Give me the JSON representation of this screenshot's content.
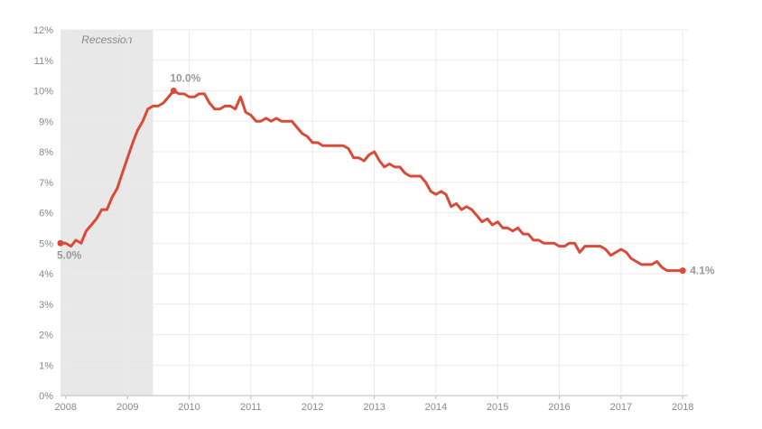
{
  "chart_data": {
    "type": "line",
    "xlim": [
      "2007-12-01",
      "2018-02-01"
    ],
    "ylim": [
      0,
      12
    ],
    "yticks": [
      {
        "value": 0,
        "label": "0%"
      },
      {
        "value": 1,
        "label": "1%"
      },
      {
        "value": 2,
        "label": "2%"
      },
      {
        "value": 3,
        "label": "3%"
      },
      {
        "value": 4,
        "label": "4%"
      },
      {
        "value": 5,
        "label": "5%"
      },
      {
        "value": 6,
        "label": "6%"
      },
      {
        "value": 7,
        "label": "7%"
      },
      {
        "value": 8,
        "label": "8%"
      },
      {
        "value": 9,
        "label": "9%"
      },
      {
        "value": 10,
        "label": "10%"
      },
      {
        "value": 11,
        "label": "11%"
      },
      {
        "value": 12,
        "label": "12%"
      }
    ],
    "xticks": [
      {
        "value": "2008-01-01",
        "label": "2008"
      },
      {
        "value": "2009-01-01",
        "label": "2009"
      },
      {
        "value": "2010-01-01",
        "label": "2010"
      },
      {
        "value": "2011-01-01",
        "label": "2011"
      },
      {
        "value": "2012-01-01",
        "label": "2012"
      },
      {
        "value": "2013-01-01",
        "label": "2013"
      },
      {
        "value": "2014-01-01",
        "label": "2014"
      },
      {
        "value": "2015-01-01",
        "label": "2015"
      },
      {
        "value": "2016-01-01",
        "label": "2016"
      },
      {
        "value": "2017-01-01",
        "label": "2017"
      },
      {
        "value": "2018-01-01",
        "label": "2018"
      }
    ],
    "grid": true,
    "line_color": "#d94a38",
    "recession": {
      "label": "Recession",
      "start": "2007-12-01",
      "end": "2009-06-01",
      "color": "#e8e8e8"
    },
    "annotations": [
      {
        "x": "2007-12-01",
        "y": 5.0,
        "label": "5.0%",
        "position": "below"
      },
      {
        "x": "2009-10-01",
        "y": 10.0,
        "label": "10.0%",
        "position": "above"
      },
      {
        "x": "2018-01-01",
        "y": 4.1,
        "label": "4.1%",
        "position": "right"
      }
    ],
    "series": [
      {
        "x": [
          "2007-12",
          "2008-01",
          "2008-02",
          "2008-03",
          "2008-04",
          "2008-05",
          "2008-06",
          "2008-07",
          "2008-08",
          "2008-09",
          "2008-10",
          "2008-11",
          "2008-12",
          "2009-01",
          "2009-02",
          "2009-03",
          "2009-04",
          "2009-05",
          "2009-06",
          "2009-07",
          "2009-08",
          "2009-09",
          "2009-10",
          "2009-11",
          "2009-12",
          "2010-01",
          "2010-02",
          "2010-03",
          "2010-04",
          "2010-05",
          "2010-06",
          "2010-07",
          "2010-08",
          "2010-09",
          "2010-10",
          "2010-11",
          "2010-12",
          "2011-01",
          "2011-02",
          "2011-03",
          "2011-04",
          "2011-05",
          "2011-06",
          "2011-07",
          "2011-08",
          "2011-09",
          "2011-10",
          "2011-11",
          "2011-12",
          "2012-01",
          "2012-02",
          "2012-03",
          "2012-04",
          "2012-05",
          "2012-06",
          "2012-07",
          "2012-08",
          "2012-09",
          "2012-10",
          "2012-11",
          "2012-12",
          "2013-01",
          "2013-02",
          "2013-03",
          "2013-04",
          "2013-05",
          "2013-06",
          "2013-07",
          "2013-08",
          "2013-09",
          "2013-10",
          "2013-11",
          "2013-12",
          "2014-01",
          "2014-02",
          "2014-03",
          "2014-04",
          "2014-05",
          "2014-06",
          "2014-07",
          "2014-08",
          "2014-09",
          "2014-10",
          "2014-11",
          "2014-12",
          "2015-01",
          "2015-02",
          "2015-03",
          "2015-04",
          "2015-05",
          "2015-06",
          "2015-07",
          "2015-08",
          "2015-09",
          "2015-10",
          "2015-11",
          "2015-12",
          "2016-01",
          "2016-02",
          "2016-03",
          "2016-04",
          "2016-05",
          "2016-06",
          "2016-07",
          "2016-08",
          "2016-09",
          "2016-10",
          "2016-11",
          "2016-12",
          "2017-01",
          "2017-02",
          "2017-03",
          "2017-04",
          "2017-05",
          "2017-06",
          "2017-07",
          "2017-08",
          "2017-09",
          "2017-10",
          "2017-11",
          "2017-12",
          "2018-01"
        ],
        "values": [
          5.0,
          5.0,
          4.9,
          5.1,
          5.0,
          5.4,
          5.6,
          5.8,
          6.1,
          6.1,
          6.5,
          6.8,
          7.3,
          7.8,
          8.3,
          8.7,
          9.0,
          9.4,
          9.5,
          9.5,
          9.6,
          9.8,
          10.0,
          9.9,
          9.9,
          9.8,
          9.8,
          9.9,
          9.9,
          9.6,
          9.4,
          9.4,
          9.5,
          9.5,
          9.4,
          9.8,
          9.3,
          9.2,
          9.0,
          9.0,
          9.1,
          9.0,
          9.1,
          9.0,
          9.0,
          9.0,
          8.8,
          8.6,
          8.5,
          8.3,
          8.3,
          8.2,
          8.2,
          8.2,
          8.2,
          8.2,
          8.1,
          7.8,
          7.8,
          7.7,
          7.9,
          8.0,
          7.7,
          7.5,
          7.6,
          7.5,
          7.5,
          7.3,
          7.2,
          7.2,
          7.2,
          7.0,
          6.7,
          6.6,
          6.7,
          6.6,
          6.2,
          6.3,
          6.1,
          6.2,
          6.1,
          5.9,
          5.7,
          5.8,
          5.6,
          5.7,
          5.5,
          5.5,
          5.4,
          5.5,
          5.3,
          5.3,
          5.1,
          5.1,
          5.0,
          5.0,
          5.0,
          4.9,
          4.9,
          5.0,
          5.0,
          4.7,
          4.9,
          4.9,
          4.9,
          4.9,
          4.8,
          4.6,
          4.7,
          4.8,
          4.7,
          4.5,
          4.4,
          4.3,
          4.3,
          4.3,
          4.4,
          4.2,
          4.1,
          4.1,
          4.1,
          4.1
        ]
      }
    ]
  }
}
